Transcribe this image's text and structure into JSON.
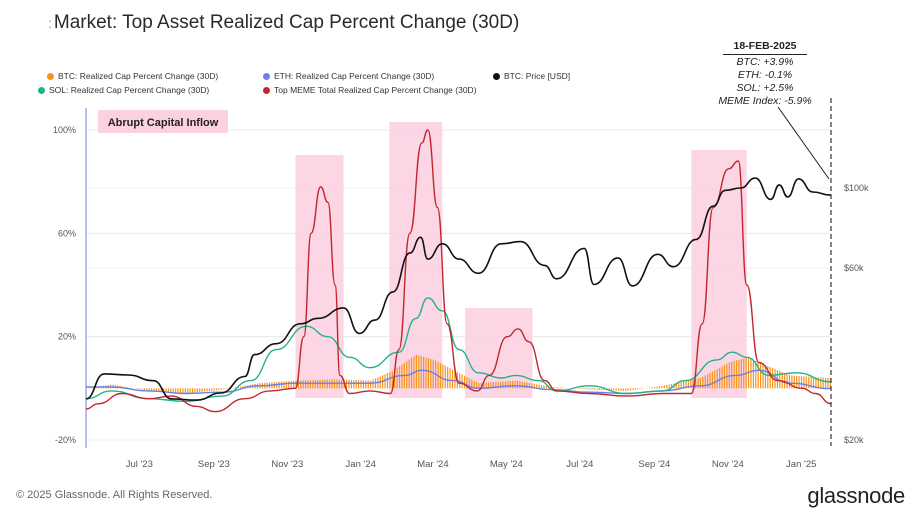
{
  "title_prefix": ":",
  "title": "Market: Top Asset Realized Cap Percent Change (30D)",
  "legend": [
    {
      "label": "BTC: Realized Cap Percent Change (30D)",
      "color": "#f7931a"
    },
    {
      "label": "ETH: Realized Cap Percent Change (30D)",
      "color": "#6b7fe8"
    },
    {
      "label": "BTC: Price [USD]",
      "color": "#111111"
    },
    {
      "label": "SOL: Realized Cap Percent Change (30D)",
      "color": "#1fb38a"
    },
    {
      "label": "Top MEME Total Realized Cap Percent Change (30D)",
      "color": "#c0282d"
    }
  ],
  "annotation": {
    "date": "18-FEB-2025",
    "lines": [
      "BTC: +3.9%",
      "ETH: -0.1%",
      "SOL: +2.5%",
      "MEME Index: -5.9%"
    ]
  },
  "callout": "Abrupt Capital Inflow",
  "footer": "© 2025 Glassnode. All Rights Reserved.",
  "brand": "glassnode",
  "chart_data": {
    "type": "line",
    "x_ticks": [
      "Jul '23",
      "Sep '23",
      "Nov '23",
      "Jan '24",
      "Mar '24",
      "May '24",
      "Jul '24",
      "Sep '24",
      "Nov '24",
      "Jan '25"
    ],
    "x_tick_dates": [
      "2023-07-01",
      "2023-09-01",
      "2023-11-01",
      "2024-01-01",
      "2024-03-01",
      "2024-05-01",
      "2024-07-01",
      "2024-09-01",
      "2024-11-01",
      "2025-01-01"
    ],
    "x_range": [
      "2023-06-10",
      "2025-02-18"
    ],
    "y_left_ticks": [
      "-20%",
      "20%",
      "60%",
      "100%"
    ],
    "y_left_range": [
      -20,
      100
    ],
    "y_right_ticks": [
      "$20k",
      "$60k",
      "$100k"
    ],
    "y_right_scale": "log",
    "highlight_periods": [
      [
        "2023-12-01",
        "2024-01-10"
      ],
      [
        "2024-02-17",
        "2024-04-01"
      ],
      [
        "2024-04-20",
        "2024-06-15"
      ],
      [
        "2024-10-25",
        "2024-12-10"
      ]
    ],
    "series": [
      {
        "name": "BTC: Price [USD]",
        "axis": "right",
        "color": "#111111",
        "points": [
          [
            "2023-06-10",
            26000
          ],
          [
            "2023-06-25",
            30500
          ],
          [
            "2023-07-15",
            30300
          ],
          [
            "2023-08-05",
            29200
          ],
          [
            "2023-08-20",
            26000
          ],
          [
            "2023-09-10",
            25800
          ],
          [
            "2023-09-30",
            27000
          ],
          [
            "2023-10-20",
            30000
          ],
          [
            "2023-10-28",
            34500
          ],
          [
            "2023-11-15",
            37000
          ],
          [
            "2023-12-05",
            42000
          ],
          [
            "2023-12-20",
            43500
          ],
          [
            "2024-01-10",
            46500
          ],
          [
            "2024-01-23",
            39500
          ],
          [
            "2024-02-05",
            43000
          ],
          [
            "2024-02-20",
            51500
          ],
          [
            "2024-03-05",
            66000
          ],
          [
            "2024-03-14",
            73000
          ],
          [
            "2024-03-20",
            63500
          ],
          [
            "2024-04-01",
            70000
          ],
          [
            "2024-04-15",
            63500
          ],
          [
            "2024-05-01",
            58000
          ],
          [
            "2024-05-20",
            70000
          ],
          [
            "2024-06-05",
            71000
          ],
          [
            "2024-06-25",
            61000
          ],
          [
            "2024-07-05",
            56000
          ],
          [
            "2024-07-28",
            68000
          ],
          [
            "2024-08-05",
            54000
          ],
          [
            "2024-08-25",
            64000
          ],
          [
            "2024-09-06",
            53500
          ],
          [
            "2024-09-27",
            65500
          ],
          [
            "2024-10-10",
            60500
          ],
          [
            "2024-10-29",
            72000
          ],
          [
            "2024-11-12",
            89000
          ],
          [
            "2024-11-22",
            98500
          ],
          [
            "2024-12-05",
            100000
          ],
          [
            "2024-12-17",
            106500
          ],
          [
            "2024-12-30",
            93000
          ],
          [
            "2025-01-06",
            102000
          ],
          [
            "2025-01-13",
            94500
          ],
          [
            "2025-01-22",
            106000
          ],
          [
            "2025-02-03",
            97500
          ],
          [
            "2025-02-18",
            95500
          ]
        ]
      },
      {
        "name": "BTC: Realized Cap Percent Change (30D)",
        "axis": "left",
        "color": "#f7931a",
        "style": "bars",
        "points": [
          [
            "2023-06-10",
            0
          ],
          [
            "2023-07-01",
            1.5
          ],
          [
            "2023-08-01",
            -1
          ],
          [
            "2023-09-01",
            -2
          ],
          [
            "2023-10-01",
            -0.5
          ],
          [
            "2023-11-01",
            2
          ],
          [
            "2023-12-01",
            3
          ],
          [
            "2024-01-01",
            3.5
          ],
          [
            "2024-02-01",
            3
          ],
          [
            "2024-02-20",
            7
          ],
          [
            "2024-03-10",
            13
          ],
          [
            "2024-03-25",
            11
          ],
          [
            "2024-04-10",
            7
          ],
          [
            "2024-05-01",
            2
          ],
          [
            "2024-06-01",
            3
          ],
          [
            "2024-07-01",
            0.5
          ],
          [
            "2024-08-01",
            -0.5
          ],
          [
            "2024-09-01",
            -1
          ],
          [
            "2024-10-01",
            1
          ],
          [
            "2024-11-01",
            4
          ],
          [
            "2024-11-25",
            10
          ],
          [
            "2024-12-10",
            12
          ],
          [
            "2024-12-25",
            9
          ],
          [
            "2025-01-15",
            5
          ],
          [
            "2025-02-18",
            3.9
          ]
        ]
      },
      {
        "name": "ETH: Realized Cap Percent Change (30D)",
        "axis": "left",
        "color": "#6b7fe8",
        "points": [
          [
            "2023-06-10",
            0.5
          ],
          [
            "2023-07-01",
            0.5
          ],
          [
            "2023-08-01",
            -1
          ],
          [
            "2023-09-01",
            -2
          ],
          [
            "2023-10-01",
            -1.5
          ],
          [
            "2023-11-01",
            1
          ],
          [
            "2023-12-01",
            2
          ],
          [
            "2024-01-01",
            2
          ],
          [
            "2024-02-01",
            2
          ],
          [
            "2024-03-01",
            5
          ],
          [
            "2024-03-15",
            7
          ],
          [
            "2024-04-10",
            3
          ],
          [
            "2024-05-01",
            0
          ],
          [
            "2024-06-01",
            1
          ],
          [
            "2024-07-01",
            -0.5
          ],
          [
            "2024-08-01",
            -1.5
          ],
          [
            "2024-09-01",
            -2
          ],
          [
            "2024-10-01",
            -1
          ],
          [
            "2024-11-01",
            1
          ],
          [
            "2024-12-01",
            5
          ],
          [
            "2024-12-20",
            7
          ],
          [
            "2025-01-15",
            2
          ],
          [
            "2025-02-18",
            -0.1
          ]
        ]
      },
      {
        "name": "SOL: Realized Cap Percent Change (30D)",
        "axis": "left",
        "color": "#1fb38a",
        "points": [
          [
            "2023-06-10",
            -4
          ],
          [
            "2023-07-01",
            -1
          ],
          [
            "2023-08-01",
            -4
          ],
          [
            "2023-09-01",
            -5
          ],
          [
            "2023-10-01",
            -3
          ],
          [
            "2023-10-25",
            3
          ],
          [
            "2023-11-15",
            15
          ],
          [
            "2023-12-10",
            24
          ],
          [
            "2023-12-28",
            20
          ],
          [
            "2024-01-15",
            12
          ],
          [
            "2024-02-01",
            8
          ],
          [
            "2024-02-25",
            14
          ],
          [
            "2024-03-10",
            27
          ],
          [
            "2024-03-20",
            35
          ],
          [
            "2024-04-01",
            30
          ],
          [
            "2024-04-15",
            15
          ],
          [
            "2024-05-01",
            6
          ],
          [
            "2024-05-20",
            4
          ],
          [
            "2024-06-01",
            5
          ],
          [
            "2024-06-20",
            3
          ],
          [
            "2024-07-05",
            -1
          ],
          [
            "2024-08-01",
            1
          ],
          [
            "2024-09-01",
            -2
          ],
          [
            "2024-10-01",
            -1
          ],
          [
            "2024-10-20",
            3
          ],
          [
            "2024-11-15",
            11
          ],
          [
            "2024-11-28",
            14
          ],
          [
            "2024-12-10",
            12
          ],
          [
            "2024-12-28",
            5
          ],
          [
            "2025-01-20",
            6
          ],
          [
            "2025-02-18",
            2.5
          ]
        ]
      },
      {
        "name": "Top MEME Total Realized Cap Percent Change (30D)",
        "axis": "left",
        "color": "#c0282d",
        "points": [
          [
            "2023-06-10",
            -8
          ],
          [
            "2023-06-20",
            -6
          ],
          [
            "2023-07-10",
            -2
          ],
          [
            "2023-08-01",
            -4
          ],
          [
            "2023-08-20",
            -3
          ],
          [
            "2023-09-10",
            -7
          ],
          [
            "2023-09-25",
            -9
          ],
          [
            "2023-10-20",
            -4
          ],
          [
            "2023-11-10",
            -1
          ],
          [
            "2023-12-01",
            0
          ],
          [
            "2023-12-08",
            20
          ],
          [
            "2023-12-14",
            60
          ],
          [
            "2023-12-22",
            78
          ],
          [
            "2023-12-28",
            72
          ],
          [
            "2024-01-03",
            40
          ],
          [
            "2024-01-07",
            5
          ],
          [
            "2024-01-15",
            -2
          ],
          [
            "2024-02-01",
            -1
          ],
          [
            "2024-02-18",
            -2
          ],
          [
            "2024-02-25",
            15
          ],
          [
            "2024-03-05",
            60
          ],
          [
            "2024-03-15",
            95
          ],
          [
            "2024-03-20",
            100
          ],
          [
            "2024-03-28",
            70
          ],
          [
            "2024-04-05",
            25
          ],
          [
            "2024-04-15",
            2
          ],
          [
            "2024-04-30",
            -1
          ],
          [
            "2024-05-10",
            5
          ],
          [
            "2024-05-25",
            20
          ],
          [
            "2024-06-03",
            23
          ],
          [
            "2024-06-12",
            18
          ],
          [
            "2024-06-25",
            3
          ],
          [
            "2024-07-05",
            -1
          ],
          [
            "2024-08-01",
            -2
          ],
          [
            "2024-09-01",
            -3
          ],
          [
            "2024-10-01",
            -2
          ],
          [
            "2024-10-25",
            -2
          ],
          [
            "2024-11-03",
            25
          ],
          [
            "2024-11-12",
            70
          ],
          [
            "2024-11-25",
            85
          ],
          [
            "2024-12-03",
            88
          ],
          [
            "2024-12-10",
            40
          ],
          [
            "2024-12-20",
            10
          ],
          [
            "2025-01-05",
            3
          ],
          [
            "2025-01-25",
            0
          ],
          [
            "2025-02-05",
            -2
          ],
          [
            "2025-02-18",
            -5.9
          ]
        ]
      }
    ]
  }
}
